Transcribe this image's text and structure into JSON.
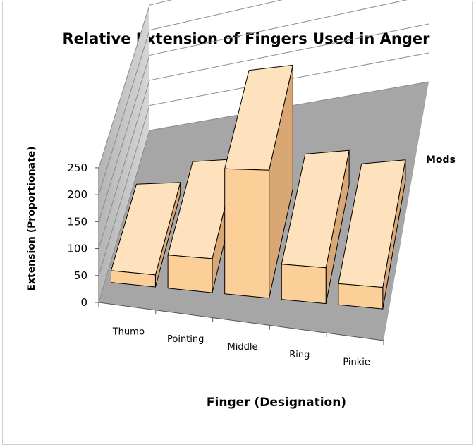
{
  "chart_data": {
    "type": "bar",
    "title": "Relative Extension of Fingers Used in Anger",
    "xlabel": "Finger (Designation)",
    "ylabel": "Extension (Proportionate)",
    "categories": [
      "Thumb",
      "Pointing",
      "Middle",
      "Ring",
      "Pinkie"
    ],
    "series": [
      {
        "name": "Mods",
        "values": [
          22,
          60,
          220,
          60,
          35
        ]
      }
    ],
    "ylim": [
      0,
      250
    ],
    "yticks": [
      0,
      50,
      100,
      150,
      200,
      250
    ],
    "grid": true,
    "legend": "right",
    "style": "3d-column",
    "colors": {
      "bar_front": "#fccf99",
      "bar_top": "#fde2bd",
      "bar_side": "#d9a773",
      "bar_edge": "#000000",
      "wall": "#c3c3c3",
      "floor": "#a6a6a6",
      "grid": "#8c8c8c"
    }
  }
}
